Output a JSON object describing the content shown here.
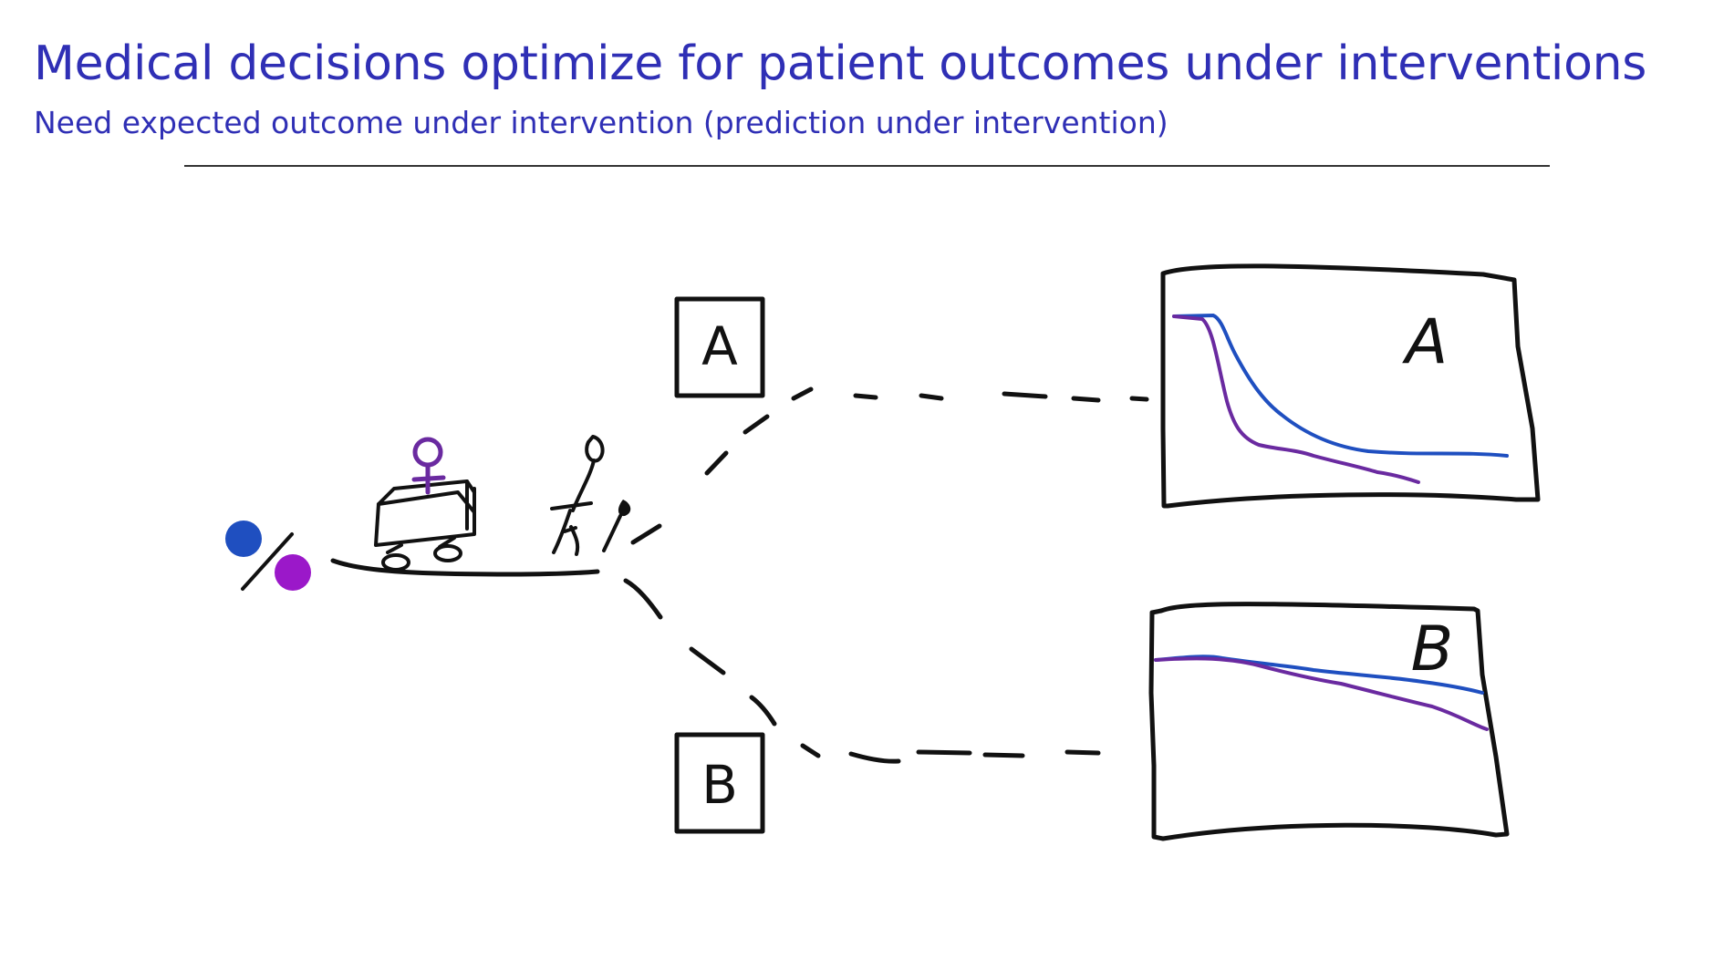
{
  "slide": {
    "title": "Medical decisions optimize for patient outcomes under interventions",
    "subtitle": "Need expected outcome under intervention (prediction under intervention)"
  },
  "diagram": {
    "boxes": [
      {
        "label": "A"
      },
      {
        "label": "B"
      }
    ],
    "panels": [
      {
        "label": "A"
      },
      {
        "label": "B"
      }
    ],
    "colors": {
      "blue": "#1f4fc0",
      "purple": "#9b18c9",
      "curve_purple": "#6a2aa0",
      "ink": "#111111",
      "title": "#2f2fb5"
    }
  }
}
